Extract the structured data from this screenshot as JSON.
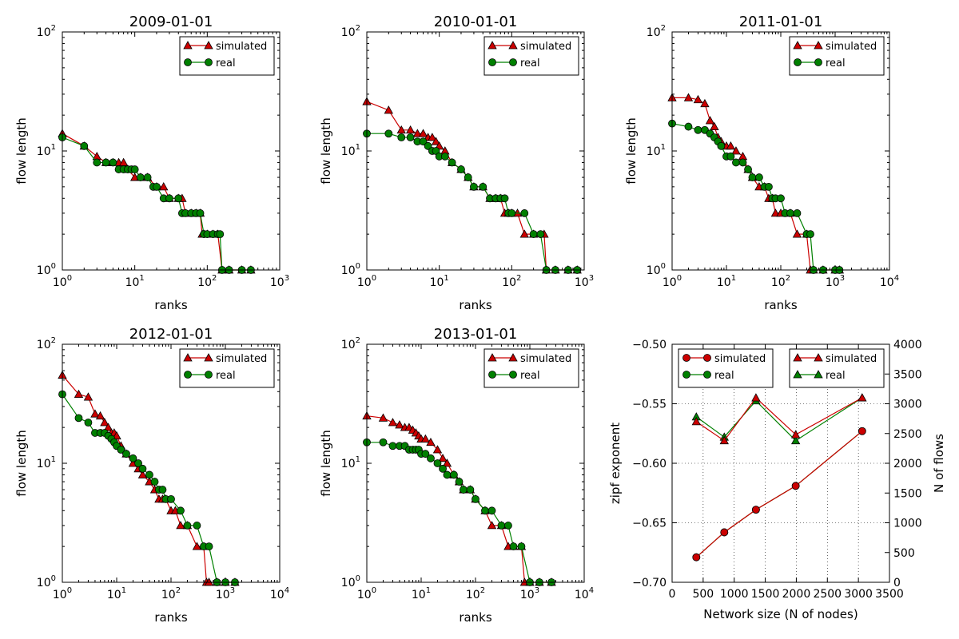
{
  "figure": {
    "panels": [
      {
        "title": "2009-01-01",
        "xlabel": "ranks",
        "ylabel": "flow length"
      },
      {
        "title": "2010-01-01",
        "xlabel": "ranks",
        "ylabel": "flow length"
      },
      {
        "title": "2011-01-01",
        "xlabel": "ranks",
        "ylabel": "flow length"
      },
      {
        "title": "2012-01-01",
        "xlabel": "ranks",
        "ylabel": "flow length"
      },
      {
        "title": "2013-01-01",
        "xlabel": "ranks",
        "ylabel": "flow length"
      },
      {
        "title": "",
        "xlabel": "Network size (N of nodes)",
        "ylabel": "zipf exponent",
        "ylabel2": "N of flows"
      }
    ]
  },
  "chart_data": [
    {
      "type": "line",
      "title": "2009-01-01",
      "xlabel": "ranks",
      "ylabel": "flow length",
      "xscale": "log",
      "yscale": "log",
      "xlim": [
        1,
        1000
      ],
      "ylim": [
        1,
        100
      ],
      "xticks": [
        "10^0",
        "10^1",
        "10^2",
        "10^3"
      ],
      "yticks": [
        "10^0",
        "10^1",
        "10^2"
      ],
      "legend": "top-right",
      "colors": {
        "simulated": "#cc0000",
        "real": "#008000"
      },
      "series": [
        {
          "name": "simulated",
          "marker": "triangle",
          "x": [
            1,
            2,
            3,
            4,
            5,
            6,
            7,
            8,
            10,
            12,
            15,
            20,
            25,
            30,
            40,
            45,
            50,
            60,
            70,
            80,
            85,
            90,
            100,
            120,
            140,
            160,
            200,
            300,
            400
          ],
          "y": [
            14,
            11,
            9,
            8,
            8,
            8,
            8,
            7,
            6,
            6,
            6,
            5,
            5,
            4,
            4,
            4,
            3,
            3,
            3,
            3,
            2,
            2,
            2,
            2,
            2,
            1,
            1,
            1,
            1
          ]
        },
        {
          "name": "real",
          "marker": "circle",
          "x": [
            1,
            2,
            3,
            4,
            5,
            6,
            7,
            8,
            9,
            10,
            12,
            15,
            18,
            20,
            25,
            30,
            40,
            45,
            50,
            60,
            70,
            80,
            90,
            100,
            120,
            140,
            150,
            160,
            200,
            300,
            400
          ],
          "y": [
            13,
            11,
            8,
            8,
            8,
            7,
            7,
            7,
            7,
            7,
            6,
            6,
            5,
            5,
            4,
            4,
            4,
            3,
            3,
            3,
            3,
            3,
            2,
            2,
            2,
            2,
            2,
            1,
            1,
            1,
            1
          ]
        }
      ]
    },
    {
      "type": "line",
      "title": "2010-01-01",
      "xlabel": "ranks",
      "ylabel": "flow length",
      "xscale": "log",
      "yscale": "log",
      "xlim": [
        1,
        1000
      ],
      "ylim": [
        1,
        100
      ],
      "xticks": [
        "10^0",
        "10^1",
        "10^2",
        "10^3"
      ],
      "yticks": [
        "10^0",
        "10^1",
        "10^2"
      ],
      "legend": "top-right",
      "colors": {
        "simulated": "#cc0000",
        "real": "#008000"
      },
      "series": [
        {
          "name": "simulated",
          "marker": "triangle",
          "x": [
            1,
            2,
            3,
            4,
            5,
            6,
            7,
            8,
            9,
            10,
            12,
            15,
            20,
            25,
            30,
            40,
            50,
            60,
            70,
            80,
            90,
            100,
            120,
            150,
            200,
            280,
            300,
            400,
            600,
            800
          ],
          "y": [
            26,
            22,
            15,
            15,
            14,
            14,
            13,
            13,
            12,
            11,
            10,
            8,
            7,
            6,
            5,
            5,
            4,
            4,
            4,
            3,
            3,
            3,
            3,
            2,
            2,
            2,
            1,
            1,
            1,
            1
          ]
        },
        {
          "name": "real",
          "marker": "circle",
          "x": [
            1,
            2,
            3,
            4,
            5,
            6,
            7,
            8,
            9,
            10,
            12,
            15,
            20,
            25,
            30,
            40,
            50,
            60,
            70,
            80,
            90,
            100,
            150,
            200,
            250,
            300,
            400,
            600,
            800
          ],
          "y": [
            14,
            14,
            13,
            13,
            12,
            12,
            11,
            10,
            10,
            9,
            9,
            8,
            7,
            6,
            5,
            5,
            4,
            4,
            4,
            4,
            3,
            3,
            3,
            2,
            2,
            1,
            1,
            1,
            1
          ]
        }
      ]
    },
    {
      "type": "line",
      "title": "2011-01-01",
      "xlabel": "ranks",
      "ylabel": "flow length",
      "xscale": "log",
      "yscale": "log",
      "xlim": [
        1,
        10000
      ],
      "ylim": [
        1,
        100
      ],
      "xticks": [
        "10^0",
        "10^1",
        "10^2",
        "10^3",
        "10^4"
      ],
      "yticks": [
        "10^0",
        "10^1",
        "10^2"
      ],
      "legend": "top-right",
      "colors": {
        "simulated": "#cc0000",
        "real": "#008000"
      },
      "series": [
        {
          "name": "simulated",
          "marker": "triangle",
          "x": [
            1,
            2,
            3,
            4,
            5,
            6,
            7,
            8,
            10,
            12,
            15,
            20,
            25,
            30,
            40,
            50,
            60,
            70,
            80,
            100,
            150,
            200,
            300,
            350,
            400,
            600,
            1000,
            1200
          ],
          "y": [
            28,
            28,
            27,
            25,
            18,
            16,
            13,
            12,
            11,
            11,
            10,
            9,
            7,
            6,
            5,
            5,
            4,
            4,
            3,
            3,
            3,
            2,
            2,
            1,
            1,
            1,
            1,
            1
          ]
        },
        {
          "name": "real",
          "marker": "circle",
          "x": [
            1,
            2,
            3,
            4,
            5,
            6,
            7,
            8,
            10,
            12,
            15,
            20,
            25,
            30,
            40,
            50,
            60,
            70,
            80,
            100,
            120,
            150,
            200,
            300,
            350,
            400,
            600,
            1000,
            1200
          ],
          "y": [
            17,
            16,
            15,
            15,
            14,
            13,
            12,
            11,
            9,
            9,
            8,
            8,
            7,
            6,
            6,
            5,
            5,
            4,
            4,
            4,
            3,
            3,
            3,
            2,
            2,
            1,
            1,
            1,
            1
          ]
        }
      ]
    },
    {
      "type": "line",
      "title": "2012-01-01",
      "xlabel": "ranks",
      "ylabel": "flow length",
      "xscale": "log",
      "yscale": "log",
      "xlim": [
        1,
        10000
      ],
      "ylim": [
        1,
        100
      ],
      "xticks": [
        "10^0",
        "10^1",
        "10^2",
        "10^3",
        "10^4"
      ],
      "yticks": [
        "10^0",
        "10^1",
        "10^2"
      ],
      "legend": "top-right",
      "colors": {
        "simulated": "#cc0000",
        "real": "#008000"
      },
      "series": [
        {
          "name": "simulated",
          "marker": "triangle",
          "x": [
            1,
            2,
            3,
            4,
            5,
            6,
            7,
            8,
            9,
            10,
            12,
            15,
            20,
            25,
            30,
            40,
            50,
            60,
            70,
            80,
            100,
            120,
            150,
            200,
            300,
            400,
            450,
            500,
            700,
            1000,
            1500
          ],
          "y": [
            55,
            38,
            36,
            26,
            25,
            22,
            20,
            18,
            18,
            17,
            14,
            12,
            10,
            9,
            8,
            7,
            6,
            5,
            5,
            5,
            4,
            4,
            3,
            3,
            2,
            2,
            1,
            1,
            1,
            1,
            1
          ]
        },
        {
          "name": "real",
          "marker": "circle",
          "x": [
            1,
            2,
            3,
            4,
            5,
            6,
            7,
            8,
            9,
            10,
            12,
            15,
            20,
            25,
            30,
            40,
            50,
            60,
            70,
            80,
            100,
            150,
            200,
            300,
            400,
            500,
            700,
            1000,
            1500
          ],
          "y": [
            38,
            24,
            22,
            18,
            18,
            18,
            17,
            16,
            15,
            14,
            13,
            12,
            11,
            10,
            9,
            8,
            7,
            6,
            6,
            5,
            5,
            4,
            3,
            3,
            2,
            2,
            1,
            1,
            1
          ]
        }
      ]
    },
    {
      "type": "line",
      "title": "2013-01-01",
      "xlabel": "ranks",
      "ylabel": "flow length",
      "xscale": "log",
      "yscale": "log",
      "xlim": [
        1,
        10000
      ],
      "ylim": [
        1,
        100
      ],
      "xticks": [
        "10^0",
        "10^1",
        "10^2",
        "10^3",
        "10^4"
      ],
      "yticks": [
        "10^0",
        "10^1",
        "10^2"
      ],
      "legend": "top-right",
      "colors": {
        "simulated": "#cc0000",
        "real": "#008000"
      },
      "series": [
        {
          "name": "simulated",
          "marker": "triangle",
          "x": [
            1,
            2,
            3,
            4,
            5,
            6,
            7,
            8,
            9,
            10,
            12,
            15,
            20,
            25,
            30,
            40,
            50,
            60,
            80,
            100,
            150,
            200,
            300,
            400,
            500,
            700,
            800,
            1000,
            1500,
            2500
          ],
          "y": [
            25,
            24,
            22,
            21,
            20,
            20,
            19,
            18,
            17,
            16,
            16,
            15,
            13,
            11,
            10,
            8,
            7,
            6,
            6,
            5,
            4,
            3,
            3,
            2,
            2,
            2,
            1,
            1,
            1,
            1
          ]
        },
        {
          "name": "real",
          "marker": "circle",
          "x": [
            1,
            2,
            3,
            4,
            5,
            6,
            7,
            8,
            9,
            10,
            12,
            15,
            20,
            25,
            30,
            40,
            50,
            60,
            80,
            100,
            150,
            200,
            300,
            400,
            500,
            700,
            1000,
            1500,
            2500
          ],
          "y": [
            15,
            15,
            14,
            14,
            14,
            13,
            13,
            13,
            13,
            12,
            12,
            11,
            10,
            9,
            8,
            8,
            7,
            6,
            6,
            5,
            4,
            4,
            3,
            3,
            2,
            2,
            1,
            1,
            1
          ]
        }
      ]
    },
    {
      "type": "line",
      "title": "",
      "xlabel": "Network size (N of nodes)",
      "ylabel": "zipf exponent",
      "ylabel2": "N of flows",
      "xlim": [
        0,
        3500
      ],
      "ylim": [
        -0.7,
        -0.5
      ],
      "ylim2": [
        0,
        4000
      ],
      "xticks": [
        "0",
        "500",
        "1000",
        "1500",
        "2000",
        "2500",
        "3000",
        "3500"
      ],
      "yticks": [
        "−0.70",
        "−0.65",
        "−0.60",
        "−0.55",
        "−0.50"
      ],
      "yticks2": [
        "0",
        "500",
        "1000",
        "1500",
        "2000",
        "2500",
        "3000",
        "3500",
        "4000"
      ],
      "grid": true,
      "legend": "top-left and top-right",
      "colors": {
        "simulated": "#cc0000",
        "real": "#008000"
      },
      "series": [
        {
          "name": "simulated",
          "axis": "left",
          "marker": "circle",
          "x": [
            390,
            840,
            1350,
            1990,
            3060
          ],
          "y": [
            -0.679,
            -0.658,
            -0.639,
            -0.619,
            -0.573
          ]
        },
        {
          "name": "real",
          "axis": "left",
          "marker": "circle",
          "x": [
            390,
            840,
            1350,
            1990,
            3060
          ],
          "y": [
            -0.679,
            -0.658,
            -0.639,
            -0.619,
            -0.573
          ]
        },
        {
          "name": "simulated",
          "axis": "right",
          "marker": "triangle",
          "x": [
            390,
            840,
            1350,
            1990,
            3060
          ],
          "y": [
            2700,
            2380,
            3100,
            2480,
            3100
          ]
        },
        {
          "name": "real",
          "axis": "right",
          "marker": "triangle",
          "x": [
            390,
            840,
            1350,
            1990,
            3060
          ],
          "y": [
            2780,
            2440,
            3050,
            2380,
            3100
          ]
        }
      ]
    }
  ]
}
